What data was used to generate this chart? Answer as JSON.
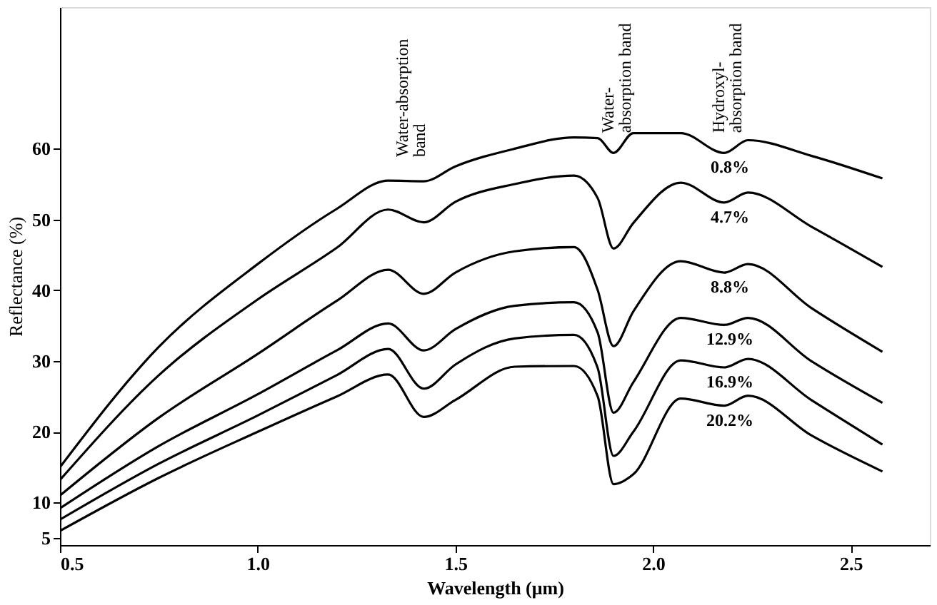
{
  "chart_data": {
    "type": "line",
    "xlabel": "Wavelength (μm)",
    "ylabel": "Reflectance (%)",
    "x": [
      0.5,
      0.75,
      1.0,
      1.2,
      1.33,
      1.42,
      1.5,
      1.65,
      1.8,
      1.86,
      1.9,
      1.95,
      2.07,
      2.18,
      2.24,
      2.4,
      2.58
    ],
    "series": [
      {
        "name": "0.8%",
        "color": "#000000",
        "values": [
          15,
          32,
          43.7,
          51.5,
          55.5,
          55.4,
          57.5,
          60,
          61.6,
          61.5,
          59.4,
          62.2,
          62.2,
          59.4,
          61.2,
          59,
          55.8
        ]
      },
      {
        "name": "4.7%",
        "color": "#000000",
        "values": [
          13.2,
          28,
          38.7,
          46,
          51.4,
          49.6,
          52.5,
          55,
          56.2,
          53,
          45.9,
          49.5,
          55.2,
          52.4,
          53.8,
          49,
          43.3
        ]
      },
      {
        "name": "8.8%",
        "color": "#000000",
        "values": [
          11,
          22,
          31,
          38.5,
          42.9,
          39.5,
          42.5,
          45.5,
          46.1,
          40,
          32.1,
          37,
          44.1,
          42.5,
          43.7,
          37.5,
          31.3
        ]
      },
      {
        "name": "12.9%",
        "color": "#000000",
        "values": [
          9.2,
          18,
          25.3,
          31.5,
          35.3,
          31.5,
          34.5,
          37.8,
          38.3,
          34,
          22.7,
          27,
          36.1,
          35.1,
          36.1,
          30,
          24.1
        ]
      },
      {
        "name": "16.9%",
        "color": "#000000",
        "values": [
          7.6,
          15.5,
          22.3,
          28,
          31.7,
          26.1,
          29.5,
          33.2,
          33.7,
          29,
          16.6,
          20,
          30.1,
          29.1,
          30.3,
          24.5,
          18.2
        ]
      },
      {
        "name": "20.2%",
        "color": "#000000",
        "values": [
          6,
          13.5,
          20,
          25,
          28.1,
          22.1,
          24.5,
          29.2,
          29.3,
          25,
          12.6,
          14,
          24.7,
          23.7,
          25.1,
          19.5,
          14.4
        ]
      }
    ],
    "xlim": [
      0.5,
      2.7
    ],
    "xticks": [
      {
        "value": 0.5,
        "label": "0.5"
      },
      {
        "value": 1.0,
        "label": "1.0"
      },
      {
        "value": 1.5,
        "label": "1.5"
      },
      {
        "value": 2.0,
        "label": "2.0"
      },
      {
        "value": 2.5,
        "label": "2.5"
      }
    ],
    "ylim": [
      4,
      80
    ],
    "yticks": [
      5,
      10,
      20,
      30,
      40,
      50,
      60
    ],
    "annotations": [
      {
        "text": "Water-absorption\nband",
        "x": 1.38,
        "y": 56
      },
      {
        "text": "Water-\nabsorption band",
        "x": 1.9,
        "y": 59.4
      },
      {
        "text": "Hydroxyl-\nabsorption band",
        "x": 2.18,
        "y": 59.4
      }
    ],
    "grid": false,
    "marker": "none",
    "line_style": "solid"
  }
}
